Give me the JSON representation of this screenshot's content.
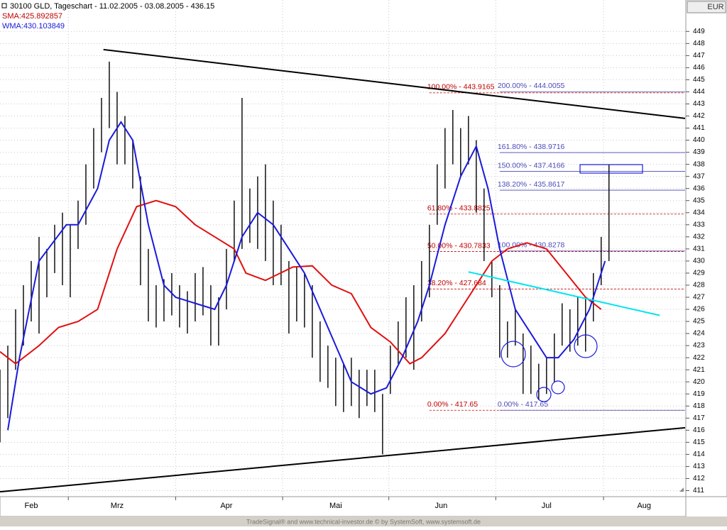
{
  "chart_data": {
    "type": "ohlc",
    "title": "30100  GLD, Tageschart - 11.02.2005 - 03.08.2005 - 436.15",
    "indicator_labels": [
      "SMA:425.892857",
      "WMA:430.103849"
    ],
    "currency": "EUR",
    "footer": "TradeSignal® and www.technical-investor.de © by SystemSoft, www.systemsoft.de",
    "xlim": [
      0,
      175.5
    ],
    "xticks": [
      {
        "value": 8,
        "label": "Feb"
      },
      {
        "value": 30,
        "label": "Mrz"
      },
      {
        "value": 58,
        "label": "Apr"
      },
      {
        "value": 86,
        "label": "Mai"
      },
      {
        "value": 113,
        "label": "Jun"
      },
      {
        "value": 140,
        "label": "Jul"
      },
      {
        "value": 165,
        "label": "Aug"
      }
    ],
    "xgrid": [
      17.5,
      45,
      72.4,
      99.6,
      127,
      154.6
    ],
    "ylim": [
      410.5,
      451.6
    ],
    "yticks": [
      411,
      412,
      413,
      414,
      415,
      416,
      417,
      418,
      419,
      420,
      421,
      422,
      423,
      424,
      425,
      426,
      427,
      428,
      429,
      430,
      431,
      432,
      433,
      434,
      435,
      436,
      437,
      438,
      439,
      440,
      441,
      442,
      443,
      444,
      445,
      446,
      447,
      448,
      449
    ],
    "grid": true,
    "bars": {
      "color": "#000000",
      "x": [
        0,
        2,
        4,
        6,
        8,
        10,
        12,
        14,
        16,
        18,
        20,
        22,
        24,
        26,
        28,
        30,
        32,
        34,
        36,
        38,
        40,
        42,
        44,
        46,
        48,
        50,
        52,
        54,
        56,
        58,
        60,
        62,
        64,
        66,
        68,
        70,
        72,
        74,
        76,
        78,
        80,
        82,
        84,
        86,
        88,
        90,
        92,
        94,
        96,
        98,
        100,
        102,
        104,
        106,
        108,
        110,
        112,
        114,
        116,
        118,
        120,
        122,
        124,
        126,
        128,
        130,
        132,
        134,
        136,
        138,
        140,
        142,
        144,
        146,
        148,
        150,
        152,
        154,
        156
      ],
      "low": [
        415,
        417,
        421,
        423,
        425,
        424,
        427,
        429,
        428,
        427,
        431,
        433,
        436,
        439,
        441,
        438,
        438,
        436,
        428,
        425,
        424.5,
        425,
        425.5,
        424.5,
        424,
        425,
        425.5,
        423,
        423,
        426,
        430,
        431,
        431.5,
        431,
        430,
        428,
        428,
        424,
        425,
        424.5,
        422,
        420,
        419.5,
        418,
        417.5,
        418,
        417,
        418,
        417.5,
        414,
        419,
        421.5,
        422,
        421,
        425,
        427,
        433,
        436,
        438,
        437,
        438,
        434,
        430,
        427,
        422,
        422,
        423,
        419,
        419,
        418.5,
        419,
        420,
        423,
        422.5,
        423,
        422.5,
        425,
        428,
        430
      ],
      "high": [
        421,
        423,
        426,
        428,
        430,
        432,
        431,
        433,
        434,
        433,
        435,
        438,
        441,
        443.5,
        446.5,
        444,
        442,
        440,
        437,
        431,
        428,
        428.5,
        429,
        428,
        427.5,
        429,
        429.5,
        428,
        427,
        431,
        435,
        443.5,
        436,
        437,
        438,
        435,
        433,
        430,
        429.5,
        429,
        428,
        425,
        423,
        422,
        421.5,
        422,
        421,
        421,
        421,
        419,
        423,
        425,
        427,
        428,
        430,
        433,
        438,
        441,
        442.5,
        441,
        442,
        440,
        436,
        430,
        428,
        425,
        426,
        424,
        423,
        421.5,
        422,
        424,
        426.5,
        426,
        427,
        427,
        429,
        432,
        438
      ]
    },
    "series": [
      {
        "name": "SMA",
        "color": "#e01010",
        "x": [
          0,
          4,
          10,
          15,
          20,
          25,
          30,
          35,
          40,
          45,
          50,
          55,
          60,
          63,
          68,
          75,
          80,
          85,
          90,
          95,
          100,
          105,
          108,
          114,
          118,
          122,
          126,
          130,
          135,
          140,
          145,
          150,
          154
        ],
        "values": [
          422.5,
          421.5,
          423,
          424.5,
          425,
          426,
          431,
          434.5,
          435,
          434.5,
          433,
          432,
          431,
          429,
          428.4,
          429.5,
          429.6,
          428,
          427.3,
          424.5,
          423.3,
          421.5,
          422,
          424,
          426,
          428,
          430,
          431,
          431.5,
          431,
          429,
          427,
          426
        ]
      },
      {
        "name": "WMA",
        "color": "#1a1adc",
        "x": [
          2,
          5,
          10,
          17,
          20,
          25,
          28,
          31,
          34,
          38,
          42,
          45,
          50,
          55,
          58,
          62,
          66,
          70,
          74,
          78,
          82,
          86,
          90,
          95,
          99,
          103,
          107,
          110,
          114,
          118,
          122,
          125,
          128,
          132,
          136,
          140,
          143,
          147,
          151,
          155
        ],
        "values": [
          416,
          422,
          430,
          433,
          433,
          436,
          440,
          441.5,
          440,
          433,
          428,
          427,
          426.5,
          426,
          428,
          432,
          434,
          433,
          431,
          429,
          426,
          423,
          420,
          419,
          419.5,
          422,
          425,
          428,
          433,
          437,
          439.5,
          436,
          431,
          426,
          424,
          422,
          422,
          423.5,
          426,
          430
        ]
      }
    ],
    "trendlines": [
      {
        "color": "#000000",
        "x": [
          26.5,
          175.5
        ],
        "values": [
          447.5,
          441.8
        ]
      },
      {
        "color": "#000000",
        "x": [
          0,
          175.5
        ],
        "values": [
          410.9,
          416.2
        ]
      },
      {
        "color": "#00e5ee",
        "x": [
          120,
          169
        ],
        "values": [
          429.1,
          425.5
        ]
      }
    ],
    "fib_retracement": {
      "color": "#c00000",
      "start": 110,
      "levels": [
        {
          "value": 443.9165,
          "label": "100.00% - 443.9165"
        },
        {
          "value": 433.8825,
          "label": "61.80% - 433.8825"
        },
        {
          "value": 430.7833,
          "label": "50.00% - 430.7833"
        },
        {
          "value": 427.684,
          "label": "38.20% - 427.684"
        },
        {
          "value": 417.65,
          "label": "0.00% - 417.65"
        }
      ]
    },
    "fib_extension": {
      "color": "#4a4ab8",
      "start": 128,
      "levels": [
        {
          "value": 444.0055,
          "label": "200.00% - 444.0055"
        },
        {
          "value": 438.9716,
          "label": "161.80% - 438.9716"
        },
        {
          "value": 437.4166,
          "label": "150.00% - 437.4166"
        },
        {
          "value": 435.8617,
          "label": "138.20% - 435.8617"
        },
        {
          "value": 430.8278,
          "label": "100.00% - 430.8278"
        },
        {
          "value": 417.65,
          "label": "0.00% - 417.65"
        }
      ]
    }
  }
}
